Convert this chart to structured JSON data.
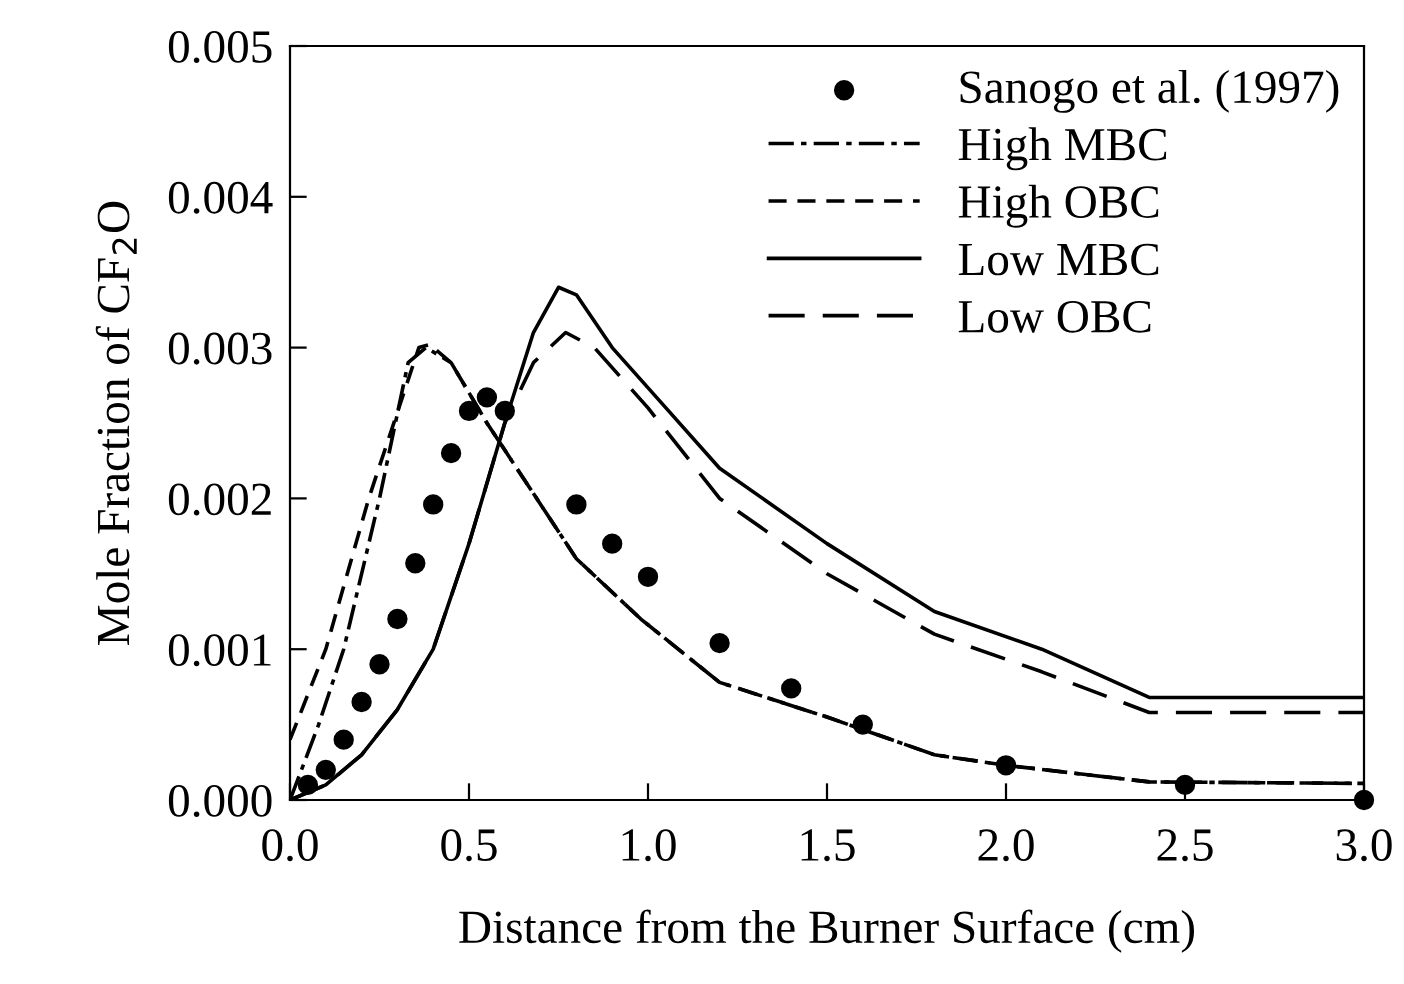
{
  "chart_data": {
    "type": "line",
    "xlabel": "Distance from the Burner Surface (cm)",
    "ylabel": "Mole Fraction of CF$_{2}$O",
    "xlim": [
      0,
      3
    ],
    "ylim": [
      0,
      0.005
    ],
    "xticks": [
      {
        "value": 0,
        "label": "0.0"
      },
      0.5,
      {
        "value": 1,
        "label": "1.0"
      },
      1.5,
      {
        "value": 2,
        "label": "2.0"
      },
      2.5,
      {
        "value": 3,
        "label": "3.0"
      }
    ],
    "yticks": [
      {
        "value": 0,
        "label": "0.000"
      },
      0.001,
      0.002,
      0.003,
      0.004,
      0.005
    ],
    "grid": false,
    "legend": "top right",
    "series": [
      {
        "name": "Sanogo et al. (1997)",
        "type": "scatter",
        "marker": "circle",
        "color": "#000000",
        "x": [
          0.05,
          0.1,
          0.15,
          0.2,
          0.25,
          0.3,
          0.35,
          0.4,
          0.45,
          0.5,
          0.55,
          0.6,
          0.8,
          0.9,
          1.0,
          1.2,
          1.4,
          1.6,
          2.0,
          2.5,
          3.0
        ],
        "values": [
          0.0001,
          0.0002,
          0.0004,
          0.00065,
          0.0009,
          0.0012,
          0.00157,
          0.00196,
          0.0023,
          0.00258,
          0.00267,
          0.00258,
          0.00196,
          0.0017,
          0.00148,
          0.00104,
          0.00074,
          0.0005,
          0.00023,
          0.0001,
          0
        ]
      },
      {
        "name": "High MBC",
        "line_style": "dashdot",
        "color": "#000000",
        "x": [
          0,
          0.08,
          0.15,
          0.25,
          0.33,
          0.38,
          0.45,
          0.55,
          0.8,
          0.98,
          1.2,
          1.5,
          1.8,
          2.0,
          2.4,
          3.0
        ],
        "values": [
          0,
          0.0005,
          0.001,
          0.002,
          0.0029,
          0.003,
          0.0029,
          0.0025,
          0.0016,
          0.0012,
          0.00078,
          0.00055,
          0.0003,
          0.00023,
          0.00012,
          0.00011
        ]
      },
      {
        "name": "High OBC",
        "line_style": "dashed",
        "color": "#000000",
        "x": [
          0,
          0.1,
          0.22,
          0.36,
          0.39,
          0.45,
          0.55,
          0.8,
          0.98,
          1.2,
          1.5,
          1.8,
          2.0,
          2.4,
          3.0
        ],
        "values": [
          0.0004,
          0.001,
          0.002,
          0.003,
          0.00302,
          0.0029,
          0.0025,
          0.0016,
          0.0012,
          0.00078,
          0.00055,
          0.0003,
          0.00023,
          0.00012,
          0.00011
        ]
      },
      {
        "name": "Low MBC",
        "line_style": "solid",
        "color": "#000000",
        "x": [
          0,
          0.1,
          0.2,
          0.3,
          0.4,
          0.5,
          0.6,
          0.68,
          0.75,
          0.8,
          0.9,
          1.05,
          1.2,
          1.5,
          1.8,
          2.1,
          2.4,
          3.0
        ],
        "values": [
          0,
          0.0001,
          0.0003,
          0.0006,
          0.001,
          0.0017,
          0.0025,
          0.0031,
          0.0034,
          0.00335,
          0.003,
          0.0026,
          0.0022,
          0.0017,
          0.00125,
          0.001,
          0.00068,
          0.00068
        ]
      },
      {
        "name": "Low OBC",
        "line_style": "longdash",
        "color": "#000000",
        "x": [
          0,
          0.1,
          0.2,
          0.3,
          0.4,
          0.5,
          0.6,
          0.68,
          0.77,
          0.85,
          1.0,
          1.2,
          1.5,
          1.8,
          2.1,
          2.4,
          3.0
        ],
        "values": [
          0,
          0.0001,
          0.0003,
          0.0006,
          0.001,
          0.0017,
          0.0025,
          0.0029,
          0.0031,
          0.003,
          0.0026,
          0.002,
          0.0015,
          0.0011,
          0.00085,
          0.00058,
          0.00058
        ]
      }
    ]
  }
}
